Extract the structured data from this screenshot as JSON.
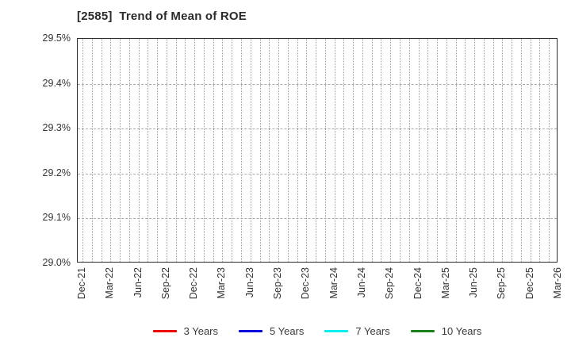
{
  "chart_data": {
    "type": "line",
    "title": "[2585]  Trend of Mean of ROE",
    "xlabel": "",
    "ylabel": "",
    "ylim": [
      29.0,
      29.5
    ],
    "y_unit": "%",
    "y_tick_labels": [
      "29.5%",
      "29.4%",
      "29.3%",
      "29.2%",
      "29.1%",
      "29.0%"
    ],
    "x_tick_labels": [
      "Dec-21",
      "Mar-22",
      "Jun-22",
      "Sep-22",
      "Dec-22",
      "Mar-23",
      "Jun-23",
      "Sep-23",
      "Dec-23",
      "Mar-24",
      "Jun-24",
      "Sep-24",
      "Dec-24",
      "Mar-25",
      "Jun-25",
      "Sep-25",
      "Dec-25",
      "Mar-26"
    ],
    "grid": true,
    "legend_position": "bottom",
    "series": [
      {
        "name": "3 Years",
        "color": "#ee0000",
        "values": []
      },
      {
        "name": "5 Years",
        "color": "#0000dd",
        "values": []
      },
      {
        "name": "7 Years",
        "color": "#00eeee",
        "values": []
      },
      {
        "name": "10 Years",
        "color": "#1a801a",
        "values": []
      }
    ]
  }
}
